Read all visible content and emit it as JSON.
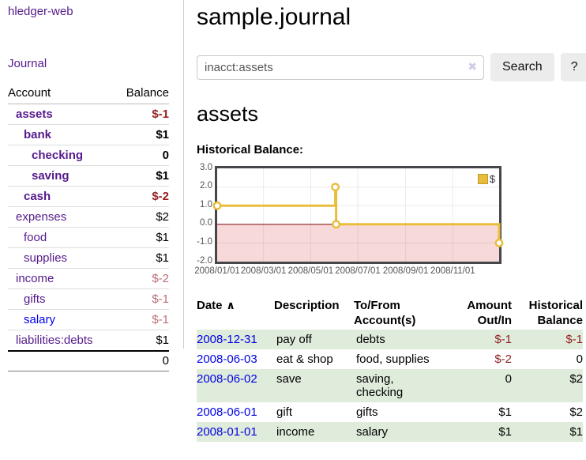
{
  "brand": "hledger-web",
  "nav": {
    "journal": "Journal"
  },
  "sidebar": {
    "header": {
      "account": "Account",
      "balance": "Balance"
    },
    "accounts": [
      {
        "name": "assets",
        "indent": 1,
        "name_style": "purple bold",
        "balance": "$-1",
        "balance_style": "neg bold"
      },
      {
        "name": "bank",
        "indent": 2,
        "name_style": "purple bold",
        "balance": "$1",
        "balance_style": "bold"
      },
      {
        "name": "checking",
        "indent": 3,
        "name_style": "purple bold",
        "balance": "0",
        "balance_style": "bold"
      },
      {
        "name": "saving",
        "indent": 3,
        "name_style": "purple bold",
        "balance": "$1",
        "balance_style": "bold"
      },
      {
        "name": "cash",
        "indent": 2,
        "name_style": "purple bold",
        "balance": "$-2",
        "balance_style": "neg bold"
      },
      {
        "name": "expenses",
        "indent": 1,
        "name_style": "purple",
        "balance": "$2",
        "balance_style": ""
      },
      {
        "name": "food",
        "indent": 2,
        "name_style": "purple",
        "balance": "$1",
        "balance_style": ""
      },
      {
        "name": "supplies",
        "indent": 2,
        "name_style": "purple",
        "balance": "$1",
        "balance_style": ""
      },
      {
        "name": "income",
        "indent": 1,
        "name_style": "purple",
        "balance": "$-2",
        "balance_style": "negsoft"
      },
      {
        "name": "gifts",
        "indent": 2,
        "name_style": "purple",
        "balance": "$-1",
        "balance_style": "negsoft"
      },
      {
        "name": "salary",
        "indent": 2,
        "name_style": "blue",
        "balance": "$-1",
        "balance_style": "negsoft"
      },
      {
        "name": "liabilities:debts",
        "indent": 1,
        "name_style": "purple",
        "balance": "$1",
        "balance_style": ""
      }
    ],
    "total": "0"
  },
  "page": {
    "title": "sample.journal",
    "account_heading": "assets",
    "chart_label": "Historical Balance:"
  },
  "search": {
    "value": "inacct:assets",
    "clear_icon": "✖",
    "search_button": "Search",
    "help_button": "?"
  },
  "chart_data": {
    "type": "line",
    "step": true,
    "title": "Historical Balance",
    "series": [
      {
        "name": "$",
        "color": "#e9bd3c",
        "points": [
          [
            "2008/01/01",
            1
          ],
          [
            "2008/06/02",
            2
          ],
          [
            "2008/06/03",
            0
          ],
          [
            "2008/12/31",
            -1
          ]
        ]
      }
    ],
    "xrange": [
      "2008/01/01",
      "2008/12/31"
    ],
    "ylim": [
      -2,
      3
    ],
    "yticks": [
      3,
      2,
      1,
      0,
      -1,
      -2
    ],
    "xticks": [
      "2008/01/01",
      "2008/03/01",
      "2008/05/01",
      "2008/07/01",
      "2008/09/01",
      "2008/11/01"
    ],
    "legend": {
      "label": "$",
      "position": "top-right"
    },
    "grid": true,
    "negative_region_color": "#f8d9d9",
    "zero_line_color": "#8b1f1f"
  },
  "register": {
    "headers": {
      "date": "Date",
      "sort_icon": "∧",
      "description": "Description",
      "accounts": [
        "To/From",
        "Account(s)"
      ],
      "amount": [
        "Amount",
        "Out/In"
      ],
      "balance": [
        "Historical",
        "Balance"
      ]
    },
    "rows": [
      {
        "date": "2008-12-31",
        "description": "pay off",
        "accounts": [
          "debts"
        ],
        "amount": "$-1",
        "amount_neg": true,
        "balance": "$-1",
        "balance_neg": true
      },
      {
        "date": "2008-06-03",
        "description": "eat & shop",
        "accounts": [
          "food, supplies"
        ],
        "amount": "$-2",
        "amount_neg": true,
        "balance": "0",
        "balance_neg": false
      },
      {
        "date": "2008-06-02",
        "description": "save",
        "accounts": [
          "saving,",
          "checking"
        ],
        "amount": "0",
        "amount_neg": false,
        "balance": "$2",
        "balance_neg": false
      },
      {
        "date": "2008-06-01",
        "description": "gift",
        "accounts": [
          "gifts"
        ],
        "amount": "$1",
        "amount_neg": false,
        "balance": "$2",
        "balance_neg": false
      },
      {
        "date": "2008-01-01",
        "description": "income",
        "accounts": [
          "salary"
        ],
        "amount": "$1",
        "amount_neg": false,
        "balance": "$1",
        "balance_neg": false
      }
    ]
  }
}
